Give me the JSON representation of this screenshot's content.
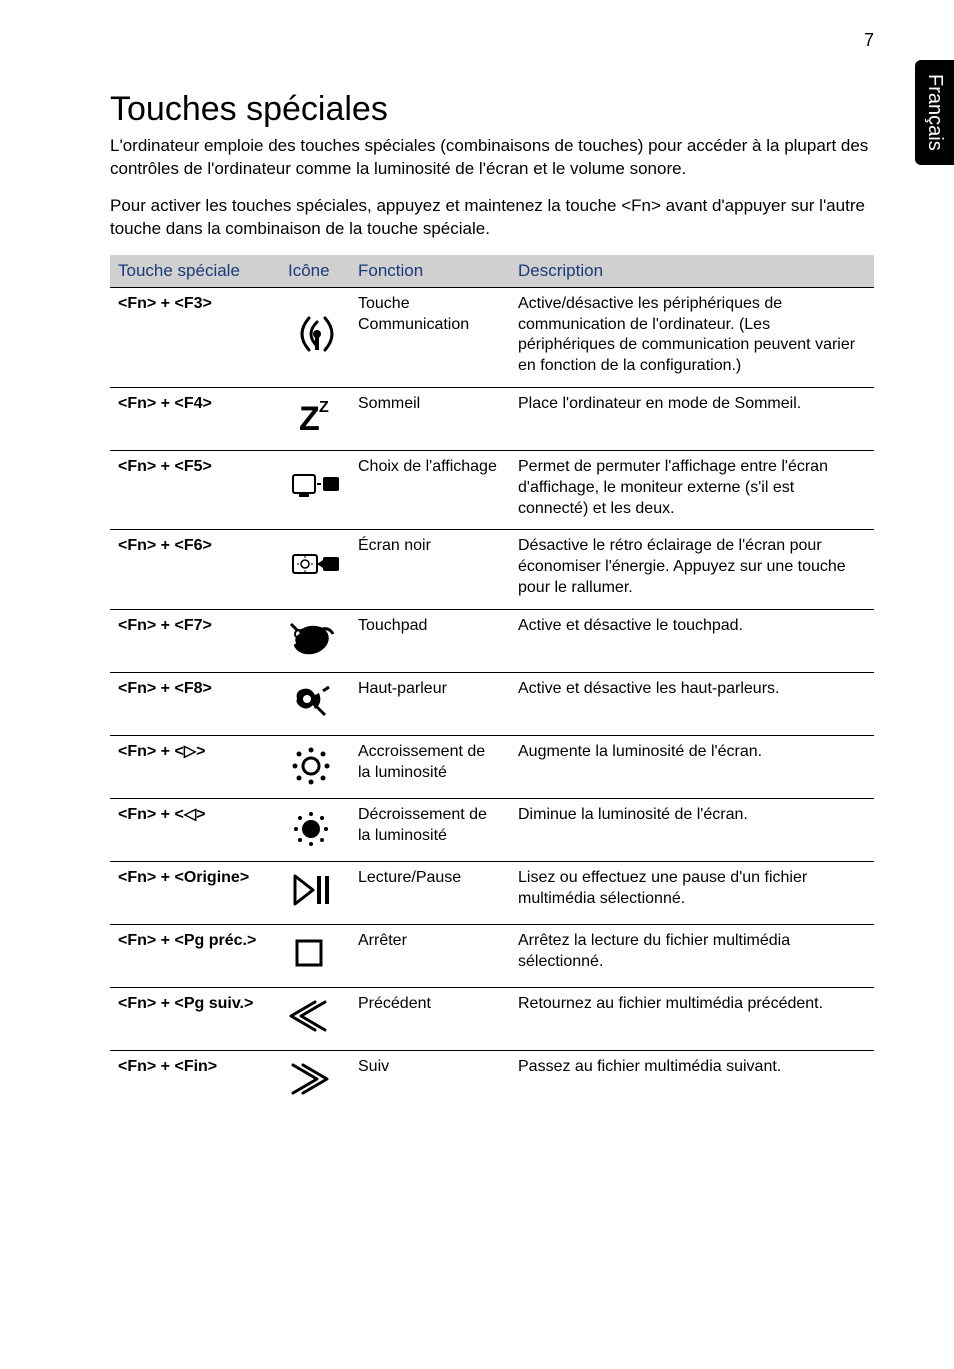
{
  "page_number": "7",
  "side_tab": "Français",
  "title": "Touches spéciales",
  "intro_1": "L'ordinateur emploie des touches spéciales (combinaisons de touches) pour accéder à la plupart des contrôles de l'ordinateur comme la luminosité de l'écran et le volume sonore.",
  "intro_2": "Pour activer les touches spéciales, appuyez et maintenez la touche <Fn> avant d'appuyer sur l'autre touche dans la combinaison de la touche spéciale.",
  "headers": {
    "key": "Touche spéciale",
    "icon": "Icône",
    "function": "Fonction",
    "description": "Description"
  },
  "rows": [
    {
      "key": "<Fn> + <F3>",
      "icon": "comm",
      "function": "Touche Communication",
      "description": "Active/désactive les périphériques de communication de l'ordinateur. \n(Les périphériques de communication peuvent varier en fonction de la configuration.)"
    },
    {
      "key": "<Fn> + <F4>",
      "icon": "sleep",
      "function": "Sommeil",
      "description": "Place l'ordinateur en mode de Sommeil."
    },
    {
      "key": "<Fn> + <F5>",
      "icon": "display",
      "function": "Choix de l'affichage",
      "description": "Permet de permuter l'affichage entre l'écran d'affichage, le moniteur externe (s'il est connecté) et les deux."
    },
    {
      "key": "<Fn> + <F6>",
      "icon": "blank",
      "function": "Écran noir",
      "description": "Désactive le rétro éclairage de l'écran pour économiser l'énergie. Appuyez sur une touche pour le rallumer."
    },
    {
      "key": "<Fn> + <F7>",
      "icon": "touchpad",
      "function": "Touchpad",
      "description": "Active et désactive le touchpad."
    },
    {
      "key": "<Fn> + <F8>",
      "icon": "speaker",
      "function": "Haut-parleur",
      "description": "Active et désactive les haut-parleurs."
    },
    {
      "key": "<Fn> + <▷>",
      "icon": "bright-up",
      "function": "Accroissement de la luminosité",
      "description": "Augmente la luminosité de l'écran."
    },
    {
      "key": "<Fn> + <◁>",
      "icon": "bright-down",
      "function": "Décroissement de la luminosité",
      "description": "Diminue la luminosité de l'écran."
    },
    {
      "key": "<Fn> + <Origine>",
      "icon": "playpause",
      "function": "Lecture/Pause",
      "description": "Lisez ou effectuez une pause d'un fichier multimédia sélectionné."
    },
    {
      "key": "<Fn> + <Pg préc.>",
      "icon": "stop",
      "function": "Arrêter",
      "description": "Arrêtez la lecture du fichier multimédia sélectionné."
    },
    {
      "key": "<Fn> + <Pg suiv.>",
      "icon": "prev",
      "function": "Précédent",
      "description": "Retournez au fichier multimédia précédent."
    },
    {
      "key": "<Fn> + <Fin>",
      "icon": "next",
      "function": "Suiv",
      "description": "Passez au fichier multimédia suivant."
    }
  ],
  "colors": {
    "header_bg": "#d0d0d0",
    "header_text": "#1a3a7a",
    "border": "#000000",
    "tab_bg": "#000000",
    "tab_text": "#ffffff"
  }
}
